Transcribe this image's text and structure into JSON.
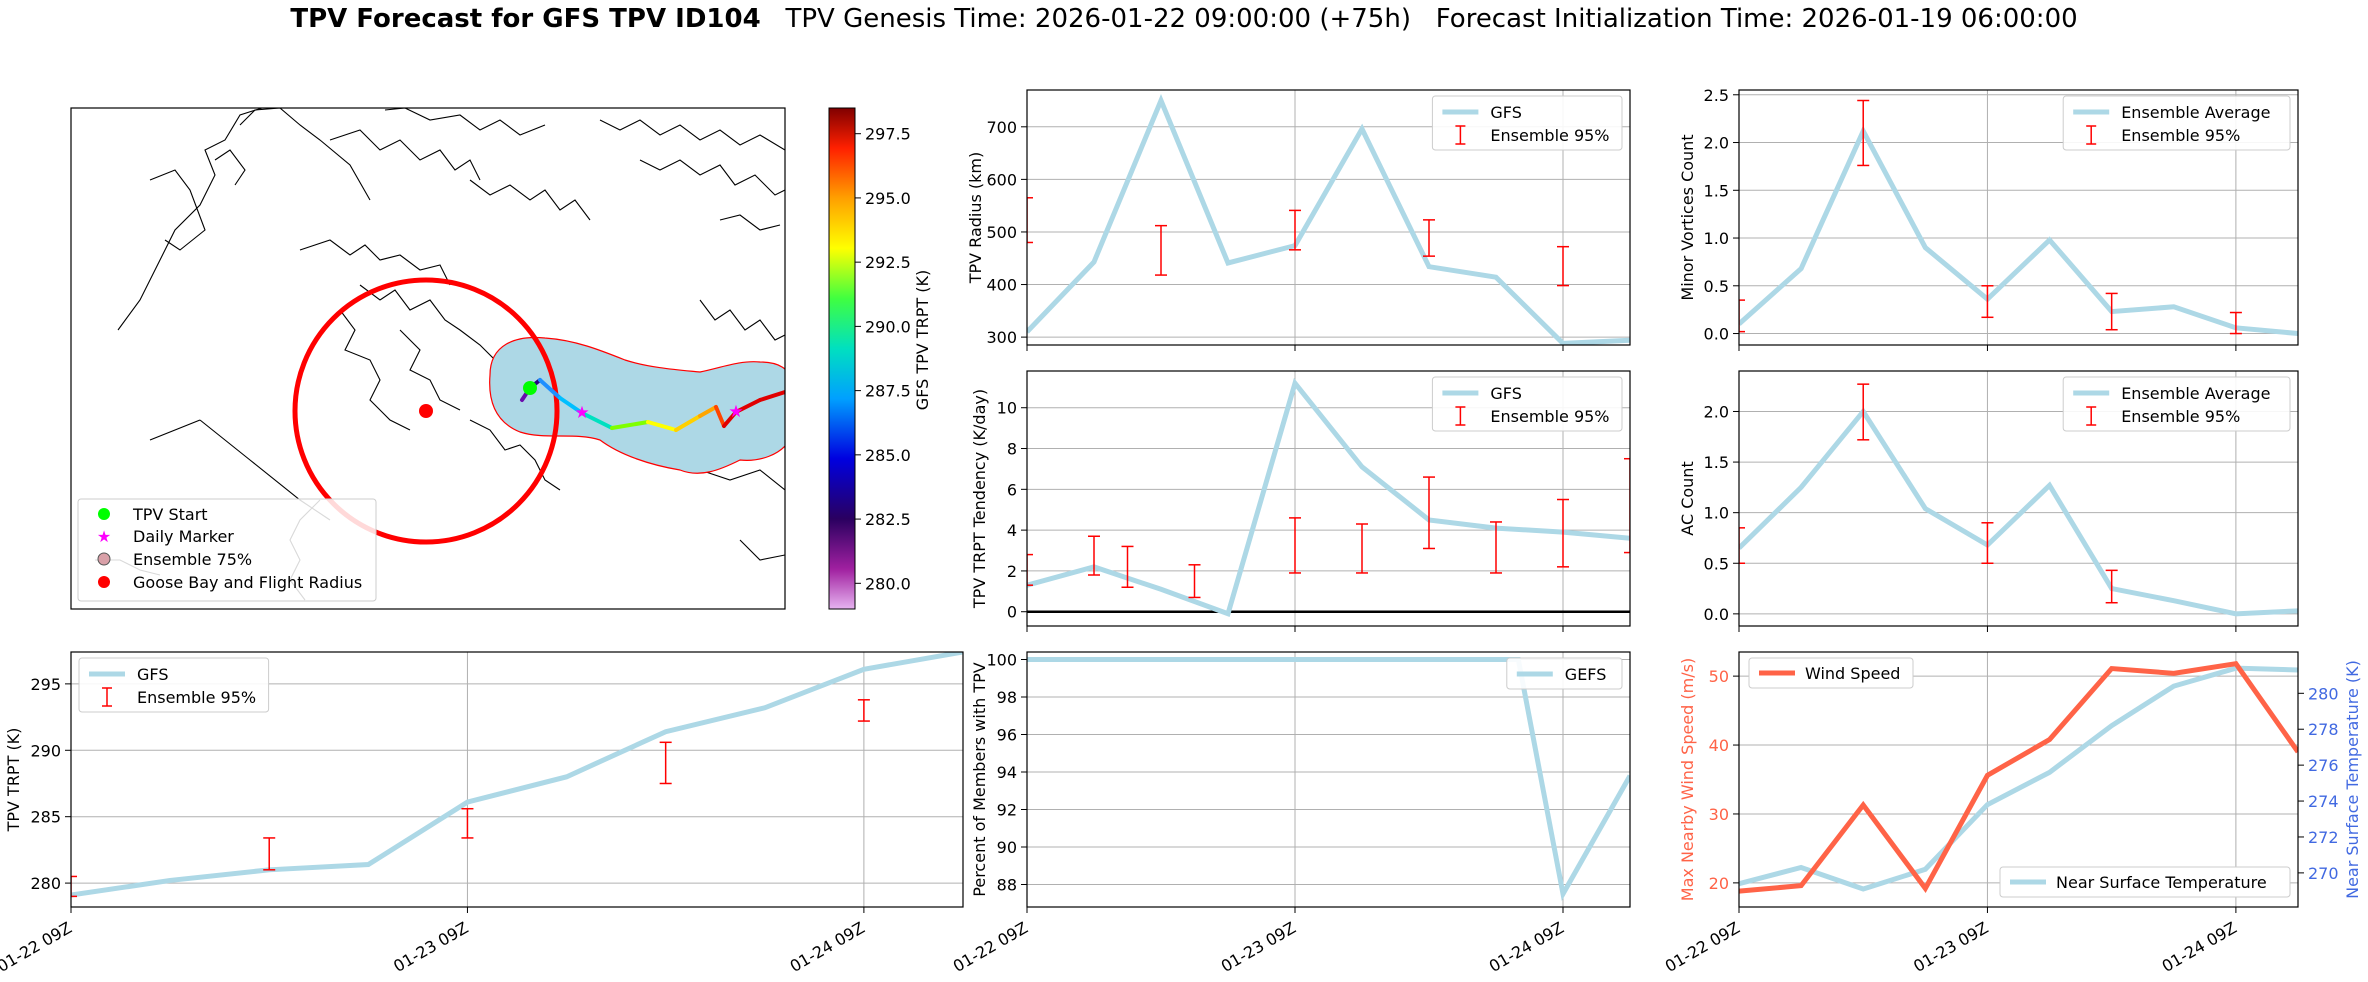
{
  "figure": {
    "title_bold": "TPV Forecast for GFS TPV ID104",
    "title_rest": "TPV Genesis Time: 2026-01-22 09:00:00 (+75h)   Forecast Initialization Time: 2026-01-19 06:00:00"
  },
  "colors": {
    "light_blue": "#add8e6",
    "errorbar_red": "#ff0000",
    "wind_tomato": "#ff6347",
    "temp_axis_blue": "#4169e1",
    "goose_red": "#ff0000",
    "start_green": "#00ff00",
    "daily_magenta": "#ff00ff"
  },
  "map": {
    "legend": [
      "TPV Start",
      "Daily Marker",
      "Ensemble 75%",
      "Goose Bay and Flight Radius"
    ],
    "colorbar": {
      "label": "GFS TPV TRPT (K)",
      "ticks": [
        "280.0",
        "282.5",
        "285.0",
        "287.5",
        "290.0",
        "292.5",
        "295.0",
        "297.5"
      ],
      "range": [
        279,
        298.5
      ]
    },
    "track_colors": [
      "#6a0dad",
      "#2a0080",
      "#1e90ff",
      "#00bfff",
      "#00e0c0",
      "#7fff00",
      "#ffff00",
      "#ffd000",
      "#ffa500",
      "#ff4500",
      "#e00000"
    ]
  },
  "chart_data": [
    {
      "id": "radius",
      "type": "line",
      "ylabel": "TPV Radius (km)",
      "xlabel": "",
      "x_hours": [
        0,
        6,
        12,
        18,
        24,
        30,
        36,
        42,
        48,
        54
      ],
      "x_ticklabels": [
        "01-22 09Z",
        "01-23 09Z",
        "01-24 09Z"
      ],
      "x_tick_hours": [
        0,
        24,
        48
      ],
      "xlim": [
        0,
        54
      ],
      "ylim": [
        285,
        770
      ],
      "yticks": [
        300,
        400,
        500,
        600,
        700
      ],
      "series": [
        {
          "name": "GFS",
          "values": [
            310,
            443,
            750,
            441,
            474,
            696,
            434,
            414,
            288,
            294
          ]
        }
      ],
      "errorbars": {
        "name": "Ensemble 95%",
        "x_hours": [
          0,
          6,
          12,
          18,
          24,
          30,
          36,
          42,
          48,
          54
        ],
        "low": [
          480,
          null,
          418,
          null,
          466,
          null,
          454,
          null,
          398,
          null
        ],
        "high": [
          565,
          null,
          512,
          null,
          541,
          null,
          523,
          null,
          472,
          null
        ]
      },
      "legend": [
        "GFS",
        "Ensemble 95%"
      ]
    },
    {
      "id": "minor_vortices",
      "type": "line",
      "ylabel": "Minor Vortices Count",
      "xlim": [
        0,
        54
      ],
      "ylim": [
        -0.12,
        2.55
      ],
      "yticks": [
        0.0,
        0.5,
        1.0,
        1.5,
        2.0,
        2.5
      ],
      "ytick_labels": [
        "0.0",
        "0.5",
        "1.0",
        "1.5",
        "2.0",
        "2.5"
      ],
      "series": [
        {
          "name": "Ensemble Average",
          "values": [
            0.1,
            0.68,
            2.12,
            0.9,
            0.36,
            0.98,
            0.23,
            0.28,
            0.06,
            0.0
          ]
        }
      ],
      "errorbars": {
        "name": "Ensemble 95%",
        "x_hours": [
          0,
          6,
          12,
          18,
          24,
          30,
          36,
          42,
          48,
          54
        ],
        "low": [
          0.02,
          null,
          1.76,
          null,
          0.17,
          null,
          0.04,
          null,
          0.0,
          null
        ],
        "high": [
          0.35,
          null,
          2.44,
          null,
          0.5,
          null,
          0.42,
          null,
          0.22,
          null
        ]
      },
      "legend": [
        "Ensemble Average",
        "Ensemble 95%"
      ]
    },
    {
      "id": "tendency",
      "type": "line",
      "ylabel": "TPV TRPT Tendency (K/day)",
      "xlim": [
        0,
        54
      ],
      "ylim": [
        -0.7,
        11.8
      ],
      "yticks": [
        0,
        2,
        4,
        6,
        8,
        10
      ],
      "series": [
        {
          "name": "GFS",
          "values": [
            1.3,
            2.2,
            1.1,
            -0.1,
            11.2,
            7.1,
            4.5,
            4.1,
            3.9,
            3.6
          ]
        }
      ],
      "zero_line": true,
      "errorbars": {
        "name": "Ensemble 95%",
        "x_hours": [
          0,
          6,
          9,
          15,
          24,
          30,
          36,
          42,
          48,
          54
        ],
        "low": [
          1.3,
          1.8,
          1.2,
          0.7,
          1.9,
          1.9,
          3.1,
          1.9,
          2.2,
          2.9
        ],
        "high": [
          2.8,
          3.7,
          3.2,
          2.3,
          4.6,
          4.3,
          6.6,
          4.4,
          5.5,
          7.5
        ]
      },
      "legend": [
        "GFS",
        "Ensemble 95%"
      ]
    },
    {
      "id": "ac_count",
      "type": "line",
      "ylabel": "AC Count",
      "xlim": [
        0,
        54
      ],
      "ylim": [
        -0.12,
        2.4
      ],
      "yticks": [
        0.0,
        0.5,
        1.0,
        1.5,
        2.0
      ],
      "ytick_labels": [
        "0.0",
        "0.5",
        "1.0",
        "1.5",
        "2.0"
      ],
      "series": [
        {
          "name": "Ensemble Average",
          "values": [
            0.65,
            1.25,
            2.0,
            1.04,
            0.68,
            1.27,
            0.25,
            0.13,
            0.0,
            0.03
          ]
        }
      ],
      "errorbars": {
        "name": "Ensemble 95%",
        "x_hours": [
          0,
          6,
          12,
          18,
          24,
          30,
          36,
          42,
          48,
          54
        ],
        "low": [
          0.5,
          null,
          1.72,
          null,
          0.5,
          null,
          0.11,
          null,
          null,
          null
        ],
        "high": [
          0.85,
          null,
          2.27,
          null,
          0.9,
          null,
          0.43,
          null,
          null,
          null
        ]
      },
      "legend": [
        "Ensemble Average",
        "Ensemble 95%"
      ]
    },
    {
      "id": "trpt",
      "type": "line",
      "ylabel": "TPV TRPT (K)",
      "xlim": [
        0,
        54
      ],
      "ylim": [
        278.2,
        297.4
      ],
      "yticks": [
        280,
        285,
        290,
        295
      ],
      "series": [
        {
          "name": "GFS",
          "values": [
            279.1,
            280.2,
            281.0,
            281.4,
            286.1,
            288.0,
            291.4,
            293.2,
            296.1,
            297.4
          ]
        }
      ],
      "errorbars": {
        "name": "Ensemble 95%",
        "x_hours": [
          0,
          12,
          24,
          36,
          48
        ],
        "low": [
          279.0,
          281.0,
          283.4,
          287.5,
          292.2
        ],
        "high": [
          280.5,
          283.4,
          285.6,
          290.6,
          293.8
        ]
      },
      "legend": [
        "GFS",
        "Ensemble 95%"
      ]
    },
    {
      "id": "percent",
      "type": "line",
      "ylabel": "Percent of Members with TPV",
      "xlim": [
        0,
        54
      ],
      "ylim": [
        86.8,
        100.4
      ],
      "yticks": [
        88,
        90,
        92,
        94,
        96,
        98,
        100
      ],
      "series": [
        {
          "name": "GEFS",
          "values": [
            100,
            100,
            100,
            100,
            100,
            100,
            100,
            100,
            87.5,
            93.8
          ],
          "x_hours": [
            0,
            6,
            12,
            18,
            24,
            30,
            36,
            44,
            48,
            54
          ]
        }
      ],
      "legend": [
        "GEFS"
      ]
    },
    {
      "id": "wind_temp",
      "type": "line",
      "ylabel": "Max Nearby Wind Speed (m/s)",
      "ylabel_right": "Near Surface Temperature (K)",
      "xlim": [
        0,
        54
      ],
      "ylim": [
        16.5,
        53.5
      ],
      "yticks": [
        20,
        30,
        40,
        50
      ],
      "ylim_right": [
        268.1,
        282.3
      ],
      "yticks_right": [
        270,
        272,
        274,
        276,
        278,
        280
      ],
      "series": [
        {
          "name": "Wind Speed",
          "values": [
            18.8,
            19.6,
            31.3,
            19.2,
            35.6,
            40.8,
            51.1,
            50.4,
            51.8,
            39.0
          ]
        },
        {
          "name": "Near Surface Temperature",
          "values": [
            269.4,
            270.3,
            269.1,
            270.2,
            273.8,
            275.6,
            278.2,
            280.4,
            281.4,
            281.3
          ]
        }
      ],
      "legend": [
        "Wind Speed",
        "Near Surface Temperature"
      ]
    }
  ]
}
